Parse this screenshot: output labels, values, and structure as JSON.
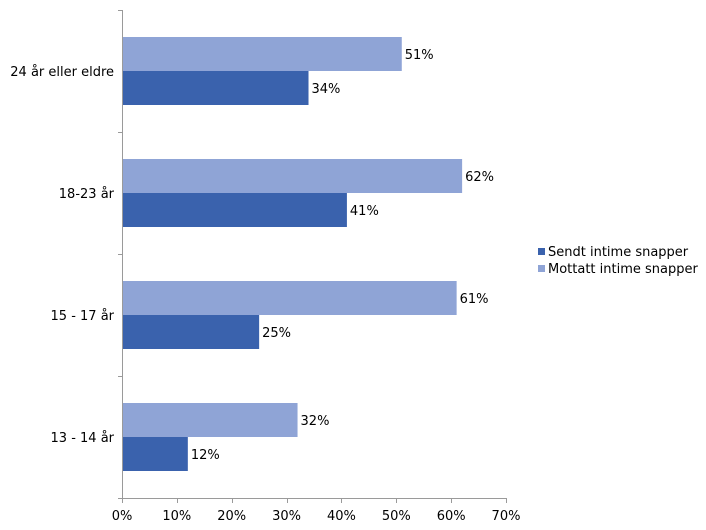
{
  "chart_data": {
    "type": "bar",
    "orientation": "horizontal",
    "title": "",
    "xlabel": "",
    "ylabel": "",
    "categories": [
      "24 år eller eldre",
      "18-23 år",
      "15 - 17 år",
      "13 - 14 år"
    ],
    "series": [
      {
        "name": "Sendt intime snapper",
        "color": "#3a62ad",
        "values": [
          34,
          41,
          25,
          12
        ],
        "labels": [
          "34%",
          "41%",
          "25%",
          "12%"
        ]
      },
      {
        "name": "Mottatt intime snapper",
        "color": "#8fa4d6",
        "values": [
          51,
          62,
          61,
          32
        ],
        "labels": [
          "51%",
          "62%",
          "61%",
          "32%"
        ]
      }
    ],
    "xlim": [
      0,
      70
    ],
    "x_ticks": [
      0,
      10,
      20,
      30,
      40,
      50,
      60,
      70
    ],
    "x_tick_labels": [
      "0%",
      "10%",
      "20%",
      "30%",
      "40%",
      "50%",
      "60%",
      "70%"
    ],
    "grid": false,
    "legend_position": "right"
  }
}
